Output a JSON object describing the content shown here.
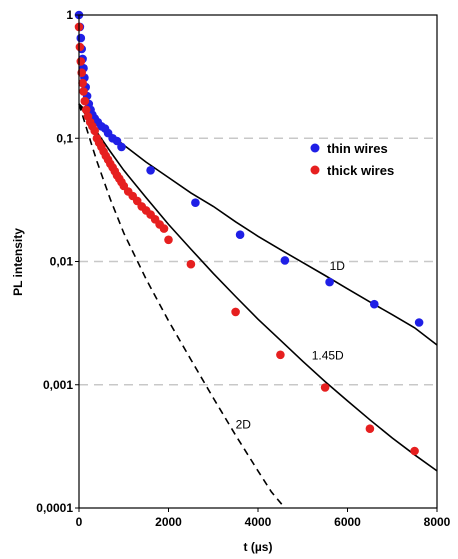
{
  "chart_data": {
    "type": "scatter",
    "title": "",
    "xlabel": "t (µs)",
    "ylabel": "PL intensity",
    "xlim": [
      0,
      8000
    ],
    "ylim": [
      0.0001,
      1
    ],
    "y_scale": "log",
    "grid": "horizontal dashed major lines",
    "legend_position": "top-right",
    "x_ticks": [
      "0",
      "2000",
      "4000",
      "6000",
      "8000"
    ],
    "y_ticks": [
      "0,0001",
      "0,001",
      "0,01",
      "0,1",
      "1"
    ],
    "x_tick_values": [
      0,
      2000,
      4000,
      6000,
      8000
    ],
    "y_tick_values": [
      0.0001,
      0.001,
      0.01,
      0.1,
      1
    ],
    "series": [
      {
        "name": "thin wires",
        "color": "#1f1fe6",
        "points": [
          [
            0,
            1.0
          ],
          [
            20,
            0.8
          ],
          [
            40,
            0.65
          ],
          [
            60,
            0.53
          ],
          [
            80,
            0.44
          ],
          [
            100,
            0.37
          ],
          [
            120,
            0.31
          ],
          [
            150,
            0.26
          ],
          [
            180,
            0.22
          ],
          [
            220,
            0.19
          ],
          [
            260,
            0.17
          ],
          [
            300,
            0.155
          ],
          [
            350,
            0.145
          ],
          [
            420,
            0.135
          ],
          [
            500,
            0.125
          ],
          [
            580,
            0.12
          ],
          [
            650,
            0.11
          ],
          [
            750,
            0.1
          ],
          [
            850,
            0.095
          ],
          [
            950,
            0.085
          ],
          [
            1600,
            0.055
          ],
          [
            2600,
            0.03
          ],
          [
            3600,
            0.0165
          ],
          [
            4600,
            0.0102
          ],
          [
            5600,
            0.0068
          ],
          [
            6600,
            0.0045
          ],
          [
            7600,
            0.0032
          ]
        ]
      },
      {
        "name": "thick wires",
        "color": "#e61f1f",
        "points": [
          [
            0,
            0.8
          ],
          [
            20,
            0.55
          ],
          [
            40,
            0.42
          ],
          [
            60,
            0.34
          ],
          [
            80,
            0.28
          ],
          [
            100,
            0.24
          ],
          [
            130,
            0.2
          ],
          [
            160,
            0.17
          ],
          [
            200,
            0.15
          ],
          [
            250,
            0.135
          ],
          [
            300,
            0.125
          ],
          [
            350,
            0.115
          ],
          [
            400,
            0.1
          ],
          [
            450,
            0.092
          ],
          [
            500,
            0.085
          ],
          [
            550,
            0.078
          ],
          [
            600,
            0.072
          ],
          [
            650,
            0.067
          ],
          [
            700,
            0.062
          ],
          [
            750,
            0.058
          ],
          [
            800,
            0.054
          ],
          [
            850,
            0.05
          ],
          [
            900,
            0.047
          ],
          [
            950,
            0.044
          ],
          [
            1000,
            0.041
          ],
          [
            1100,
            0.037
          ],
          [
            1200,
            0.034
          ],
          [
            1300,
            0.031
          ],
          [
            1400,
            0.028
          ],
          [
            1500,
            0.026
          ],
          [
            1600,
            0.024
          ],
          [
            1700,
            0.022
          ],
          [
            1800,
            0.02
          ],
          [
            1900,
            0.0185
          ],
          [
            2000,
            0.015
          ],
          [
            2500,
            0.0095
          ],
          [
            3500,
            0.0039
          ],
          [
            4500,
            0.00175
          ],
          [
            5500,
            0.00095
          ],
          [
            6500,
            0.00044
          ],
          [
            7500,
            0.00029
          ]
        ]
      }
    ],
    "fit_curves": [
      {
        "label": "1D",
        "style": "solid",
        "points": [
          [
            0,
            0.19
          ],
          [
            100,
            0.175
          ],
          [
            200,
            0.16
          ],
          [
            400,
            0.135
          ],
          [
            700,
            0.108
          ],
          [
            1000,
            0.088
          ],
          [
            1500,
            0.064
          ],
          [
            2000,
            0.048
          ],
          [
            2500,
            0.036
          ],
          [
            3000,
            0.028
          ],
          [
            3500,
            0.021
          ],
          [
            4000,
            0.016
          ],
          [
            4500,
            0.0125
          ],
          [
            5000,
            0.0098
          ],
          [
            5500,
            0.0077
          ],
          [
            6000,
            0.006
          ],
          [
            6500,
            0.0047
          ],
          [
            7000,
            0.0037
          ],
          [
            7500,
            0.0029
          ],
          [
            8000,
            0.0021
          ]
        ]
      },
      {
        "label": "1.45D",
        "style": "solid",
        "points": [
          [
            0,
            0.19
          ],
          [
            100,
            0.165
          ],
          [
            200,
            0.145
          ],
          [
            400,
            0.112
          ],
          [
            700,
            0.078
          ],
          [
            1000,
            0.055
          ],
          [
            1500,
            0.033
          ],
          [
            2000,
            0.02
          ],
          [
            2500,
            0.0126
          ],
          [
            3000,
            0.008
          ],
          [
            3500,
            0.0052
          ],
          [
            4000,
            0.0034
          ],
          [
            4500,
            0.0023
          ],
          [
            5000,
            0.00155
          ],
          [
            5500,
            0.00106
          ],
          [
            6000,
            0.00074
          ],
          [
            6500,
            0.00052
          ],
          [
            7000,
            0.00037
          ],
          [
            7500,
            0.00027
          ],
          [
            8000,
            0.0002
          ]
        ]
      },
      {
        "label": "2D",
        "style": "dashed",
        "points": [
          [
            0,
            0.19
          ],
          [
            100,
            0.145
          ],
          [
            200,
            0.11
          ],
          [
            400,
            0.065
          ],
          [
            700,
            0.032
          ],
          [
            1000,
            0.017
          ],
          [
            1500,
            0.0072
          ],
          [
            2000,
            0.0033
          ],
          [
            2500,
            0.0016
          ],
          [
            3000,
            0.00078
          ],
          [
            3500,
            0.00039
          ],
          [
            4000,
            0.0002
          ],
          [
            4300,
            0.000135
          ],
          [
            4600,
            0.0001
          ]
        ]
      }
    ],
    "annotations": [
      {
        "text": "1D",
        "x": 5600,
        "y": 0.0085
      },
      {
        "text": "1.45D",
        "x": 5200,
        "y": 0.0016
      },
      {
        "text": "2D",
        "x": 3500,
        "y": 0.00044
      }
    ]
  }
}
